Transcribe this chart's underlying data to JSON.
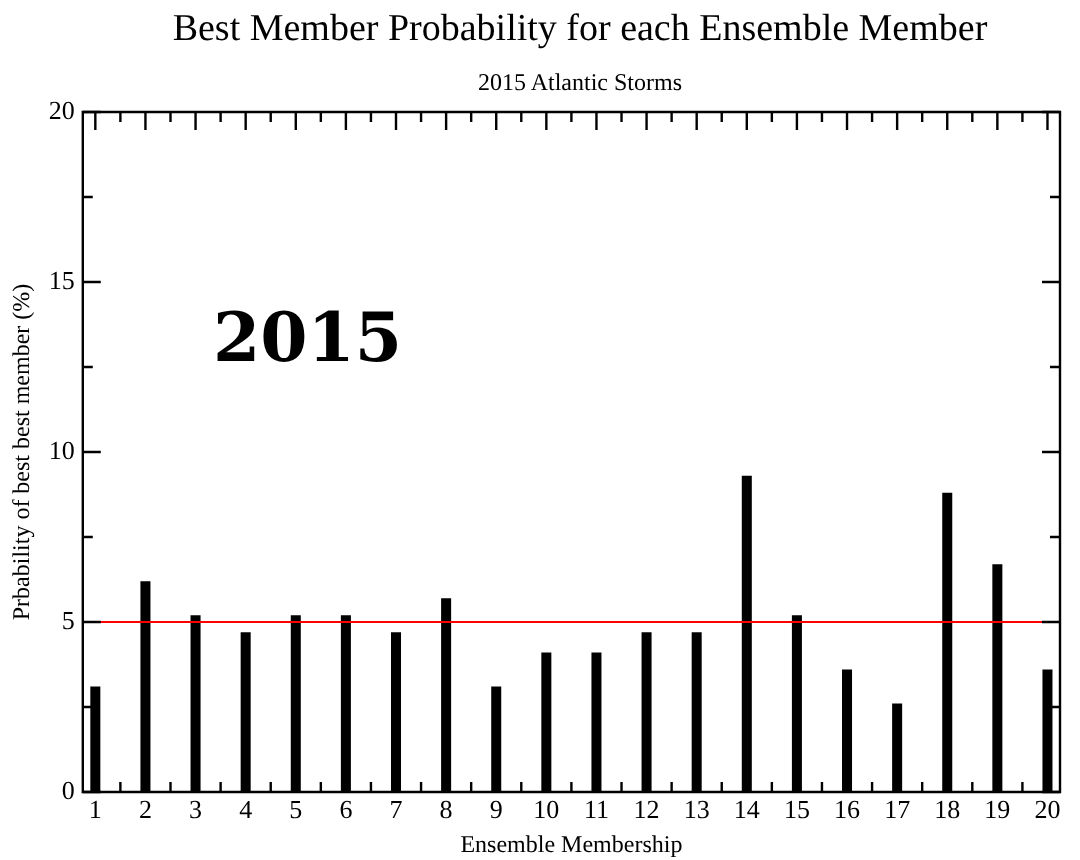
{
  "chart_data": {
    "type": "bar",
    "title": "Best Member Probability for each Ensemble Member",
    "subtitle": "2015 Atlantic Storms",
    "xlabel": "Ensemble Membership",
    "ylabel": "Prbability of best best member (%)",
    "x": [
      1,
      2,
      3,
      4,
      5,
      6,
      7,
      8,
      9,
      10,
      11,
      12,
      13,
      14,
      15,
      16,
      17,
      18,
      19,
      20
    ],
    "values": [
      3.1,
      6.2,
      5.2,
      4.7,
      5.2,
      5.2,
      4.7,
      5.7,
      3.1,
      4.1,
      4.1,
      4.7,
      4.7,
      9.3,
      5.2,
      3.6,
      2.6,
      8.8,
      6.7,
      3.6
    ],
    "color": "#000000",
    "xlim": [
      1,
      20
    ],
    "xticks": [
      1,
      {
        "value": 1.5,
        "label": null
      },
      2,
      {
        "value": 2.5,
        "label": null
      },
      3,
      {
        "value": 3.5,
        "label": null
      },
      4,
      {
        "value": 4.5,
        "label": null
      },
      5,
      {
        "value": 5.5,
        "label": null
      },
      6,
      {
        "value": 6.5,
        "label": null
      },
      7,
      {
        "value": 7.5,
        "label": null
      },
      8,
      {
        "value": 8.5,
        "label": null
      },
      9,
      {
        "value": 9.5,
        "label": null
      },
      10,
      {
        "value": 10.5,
        "label": null
      },
      11,
      {
        "value": 11.5,
        "label": null
      },
      12,
      {
        "value": 12.5,
        "label": null
      },
      13,
      {
        "value": 13.5,
        "label": null
      },
      14,
      {
        "value": 14.5,
        "label": null
      },
      15,
      {
        "value": 15.5,
        "label": null
      },
      16,
      {
        "value": 16.5,
        "label": null
      },
      17,
      {
        "value": 17.5,
        "label": null
      },
      18,
      {
        "value": 18.5,
        "label": null
      },
      19,
      {
        "value": 19.5,
        "label": null
      },
      20
    ],
    "ylim": [
      0,
      20
    ],
    "yticks": [
      0,
      {
        "value": 2.5,
        "label": null
      },
      5,
      {
        "value": 7.5,
        "label": null
      },
      10,
      {
        "value": 12.5,
        "label": null
      },
      15,
      {
        "value": 17.5,
        "label": null
      },
      20
    ],
    "ref_lines": [
      {
        "axis": "y",
        "value": 5,
        "color": "#ff0000"
      }
    ],
    "annotations": [
      "2015"
    ],
    "grid": false,
    "legend": false
  }
}
